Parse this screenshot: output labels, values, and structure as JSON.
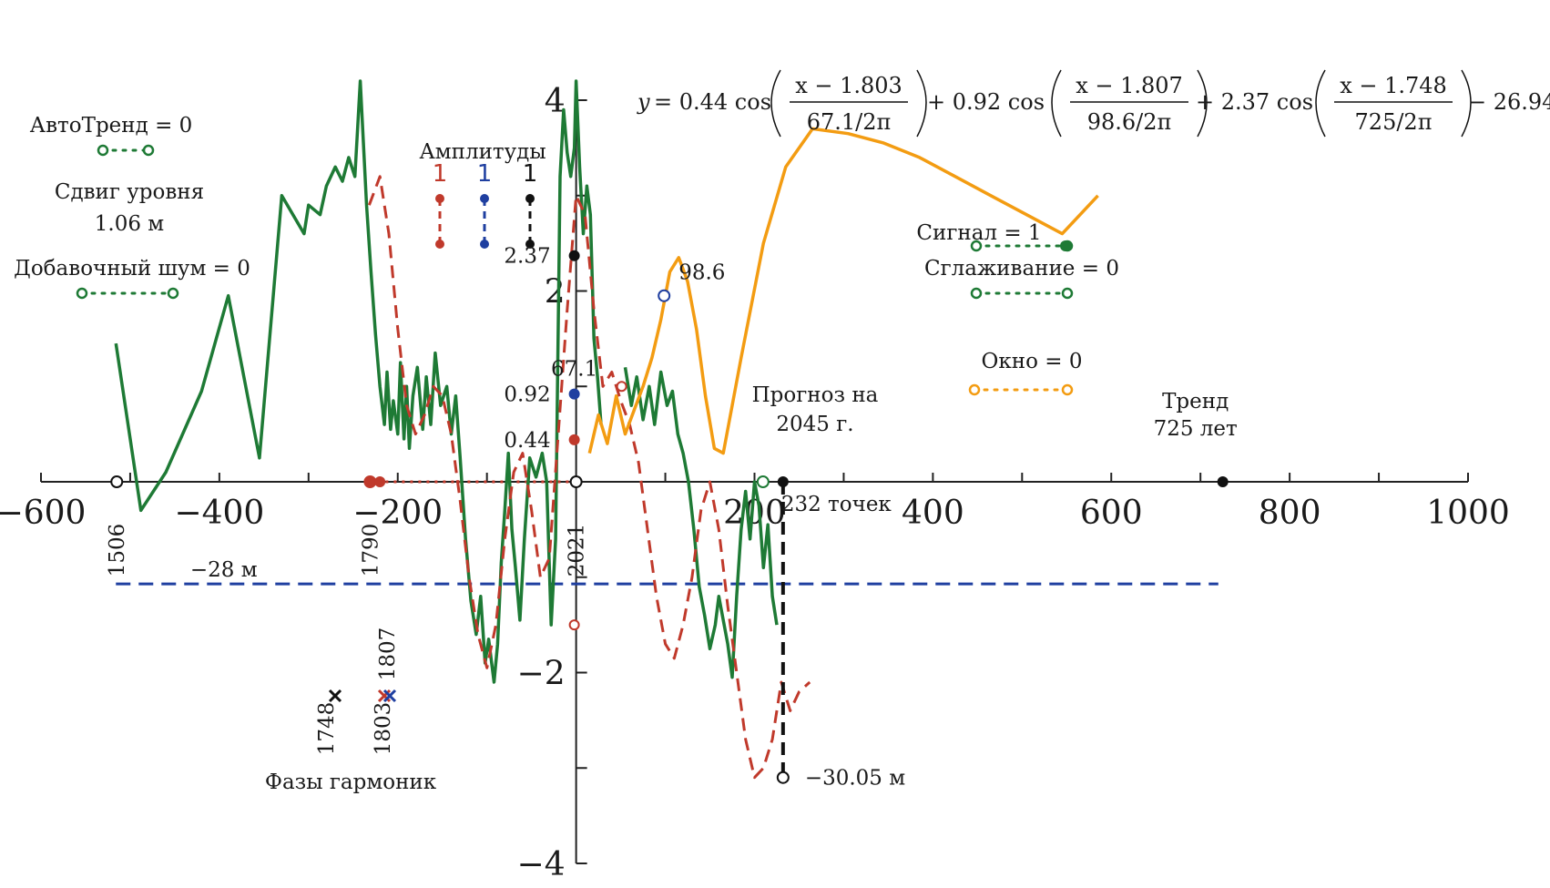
{
  "chart_data": {
    "type": "line",
    "x_axis": {
      "min": -600,
      "max": 1000,
      "ticks": [
        -600,
        -400,
        -200,
        200,
        400,
        600,
        800,
        1000
      ]
    },
    "y_axis": {
      "min": -4,
      "max": 4,
      "ticks": [
        4,
        2,
        -2,
        -4
      ]
    },
    "tick_labels": {
      "x": [
        "−600",
        "−400",
        "−200",
        "200",
        "400",
        "600",
        "800",
        "1000"
      ],
      "y": [
        "4",
        "2",
        "−2",
        "−4"
      ]
    },
    "equation": {
      "lead": "y",
      "eq_sign": " = 0.44 cos",
      "term1_num": "x − 1.803",
      "term1_den": "67.1/2π",
      "plus2": "+ 0.92 cos",
      "term2_num": "x − 1.807",
      "term2_den": "98.6/2π",
      "plus3": "+ 2.37 cos",
      "term3_num": "x − 1.748",
      "term3_den": "725/2π",
      "tail": "− 26.94"
    },
    "controls": {
      "autotrend": "АвтоТренд = 0",
      "level_shift": "Сдвиг уровня",
      "level_shift_value": "1.06 м",
      "extra_noise": "Добавочный шум = 0",
      "signal": "Сигнал = 1",
      "smoothing": "Сглаживание = 0",
      "window": "Окно = 0"
    },
    "amplitudes": {
      "title": "Амплитуды",
      "markers": [
        "1",
        "1",
        "1"
      ],
      "values": [
        {
          "label": "0.44",
          "y": 0.44,
          "color": "#c0392b"
        },
        {
          "label": "0.92",
          "y": 0.92,
          "color": "#1f3fa0"
        },
        {
          "label": "2.37",
          "y": 2.37,
          "color": "#111111"
        }
      ]
    },
    "periods": [
      {
        "label": "67.1",
        "x": 67.1
      },
      {
        "label": "98.6",
        "x": 98.6
      },
      {
        "label": "725 лет",
        "x": 725
      }
    ],
    "trend_label": "Тренд",
    "forecast": {
      "label_line1": "Прогноз на",
      "label_line2": "2045 г.",
      "points_label": "232 точек",
      "value_label": "−30.05 м",
      "x": 232,
      "y": -3.1
    },
    "mean_level": {
      "label": "−28 м",
      "y": -1.07
    },
    "year_labels": [
      {
        "label": "1506",
        "x": -515
      },
      {
        "label": "1790",
        "x": -231
      },
      {
        "label": "2021",
        "x": 0
      }
    ],
    "phases": {
      "title": "Фазы гармоник",
      "items": [
        {
          "label": "1748",
          "x": -273,
          "color": "#111111"
        },
        {
          "label": "1803",
          "x": -218,
          "color": "#c0392b"
        },
        {
          "label": "1807",
          "x": -214,
          "color": "#1f3fa0"
        }
      ]
    },
    "series": [
      {
        "name": "observed",
        "color": "#1e7a35",
        "x": [
          -516,
          -488,
          -460,
          -420,
          -390,
          -355,
          -330,
          -305,
          -300,
          -287,
          -280,
          -270,
          -262,
          -255,
          -248,
          -242,
          -235,
          -230,
          -225,
          -220,
          -215,
          -212,
          -208,
          -205,
          -200,
          -197,
          -193,
          -190,
          -187,
          -183,
          -178,
          -172,
          -168,
          -163,
          -158,
          -152,
          -145,
          -140,
          -135,
          -130,
          -124,
          -118,
          -112,
          -107,
          -102,
          -98,
          -92,
          -88,
          -84,
          -80,
          -76,
          -72,
          -68,
          -63,
          -58,
          -52,
          -45,
          -38,
          -33,
          -28,
          -23,
          -18,
          -14,
          -10,
          -6,
          -2,
          0,
          4,
          8,
          12,
          16,
          20,
          24,
          28
        ],
        "y": [
          1.45,
          -0.3,
          0.1,
          0.95,
          1.95,
          0.25,
          3.0,
          2.6,
          2.9,
          2.8,
          3.1,
          3.3,
          3.15,
          3.4,
          3.2,
          4.2,
          2.9,
          2.2,
          1.55,
          1.0,
          0.6,
          1.15,
          0.55,
          0.85,
          0.5,
          1.25,
          0.45,
          1.0,
          0.35,
          0.9,
          1.2,
          0.55,
          1.1,
          0.6,
          1.35,
          0.8,
          1.0,
          0.5,
          0.9,
          0.25,
          -0.6,
          -1.25,
          -1.6,
          -1.2,
          -1.9,
          -1.65,
          -2.1,
          -1.7,
          -0.85,
          -0.3,
          0.3,
          -0.5,
          -0.9,
          -1.45,
          -0.6,
          0.25,
          0.05,
          0.3,
          0.0,
          -1.5,
          -0.6,
          3.2,
          3.9,
          3.45,
          3.2,
          3.5,
          4.2,
          3.3,
          2.6,
          3.1,
          2.8,
          1.5,
          1.1,
          0.6
        ]
      },
      {
        "name": "observed_2",
        "color": "#1e7a35",
        "x": [
          55,
          62,
          68,
          75,
          82,
          88,
          95,
          102,
          108,
          114,
          120,
          126,
          132,
          138,
          144,
          150,
          156,
          160,
          165,
          170,
          175,
          180,
          185,
          190,
          195,
          200,
          205,
          210,
          215,
          220,
          225
        ],
        "y": [
          1.2,
          0.8,
          1.1,
          0.65,
          1.0,
          0.6,
          1.15,
          0.8,
          0.95,
          0.5,
          0.3,
          0.0,
          -0.5,
          -1.1,
          -1.4,
          -1.75,
          -1.5,
          -1.2,
          -1.45,
          -1.7,
          -2.05,
          -1.2,
          -0.5,
          -0.1,
          -0.6,
          0.0,
          -0.25,
          -0.9,
          -0.45,
          -1.2,
          -1.5
        ]
      },
      {
        "name": "model",
        "color": "#c0392b",
        "x": [
          -232,
          -220,
          -210,
          -200,
          -190,
          -180,
          -170,
          -160,
          -150,
          -140,
          -130,
          -120,
          -110,
          -100,
          -90,
          -80,
          -70,
          -60,
          -50,
          -40,
          -30,
          -20,
          -10,
          0,
          10,
          20,
          30,
          40,
          50,
          60,
          70,
          80,
          90,
          100,
          110,
          120,
          130,
          140,
          150,
          160,
          170,
          180,
          190,
          200,
          210,
          220,
          230,
          240,
          250,
          262
        ],
        "y": [
          2.9,
          3.2,
          2.6,
          1.6,
          0.8,
          0.5,
          0.7,
          1.0,
          0.9,
          0.5,
          -0.2,
          -1.0,
          -1.6,
          -1.95,
          -1.5,
          -0.6,
          0.1,
          0.3,
          -0.3,
          -1.0,
          -0.8,
          0.5,
          1.8,
          3.0,
          2.8,
          1.8,
          1.0,
          1.15,
          0.85,
          0.6,
          0.2,
          -0.5,
          -1.2,
          -1.7,
          -1.85,
          -1.5,
          -1.0,
          -0.3,
          0.0,
          -0.5,
          -1.3,
          -2.0,
          -2.7,
          -3.1,
          -3.0,
          -2.7,
          -2.1,
          -2.4,
          -2.2,
          -2.1
        ]
      },
      {
        "name": "window",
        "color": "#f39c12",
        "x": [
          15,
          25,
          35,
          45,
          55,
          65,
          75,
          85,
          95,
          105,
          115,
          125,
          135,
          145,
          155,
          165,
          185,
          210,
          235,
          265,
          305,
          345,
          385,
          425,
          465,
          505,
          545,
          585
        ],
        "y": [
          0.3,
          0.7,
          0.4,
          0.9,
          0.5,
          0.75,
          1.0,
          1.3,
          1.7,
          2.2,
          2.35,
          2.1,
          1.6,
          0.9,
          0.35,
          0.3,
          1.3,
          2.5,
          3.3,
          3.7,
          3.65,
          3.55,
          3.4,
          3.2,
          3.0,
          2.8,
          2.6,
          3.0
        ]
      }
    ]
  }
}
